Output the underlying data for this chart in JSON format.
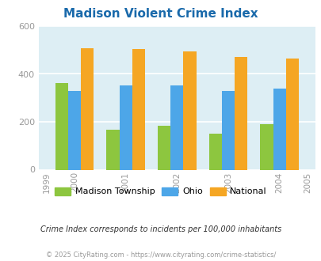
{
  "title": "Madison Violent Crime Index",
  "all_years": [
    1999,
    2000,
    2001,
    2002,
    2003,
    2004,
    2005
  ],
  "data_years": [
    2000,
    2001,
    2002,
    2003,
    2004
  ],
  "madison": [
    362,
    168,
    185,
    151,
    190
  ],
  "ohio": [
    330,
    352,
    352,
    328,
    338
  ],
  "national": [
    507,
    504,
    494,
    472,
    463
  ],
  "madison_color": "#8dc63f",
  "ohio_color": "#4da6e8",
  "national_color": "#f5a623",
  "bg_color": "#ddeef4",
  "ylim": [
    0,
    600
  ],
  "yticks": [
    0,
    200,
    400,
    600
  ],
  "ylabel_note": "Crime Index corresponds to incidents per 100,000 inhabitants",
  "footer": "© 2025 CityRating.com - https://www.cityrating.com/crime-statistics/",
  "title_color": "#1a6aab",
  "legend_labels": [
    "Madison Township",
    "Ohio",
    "National"
  ],
  "bar_width": 0.25
}
